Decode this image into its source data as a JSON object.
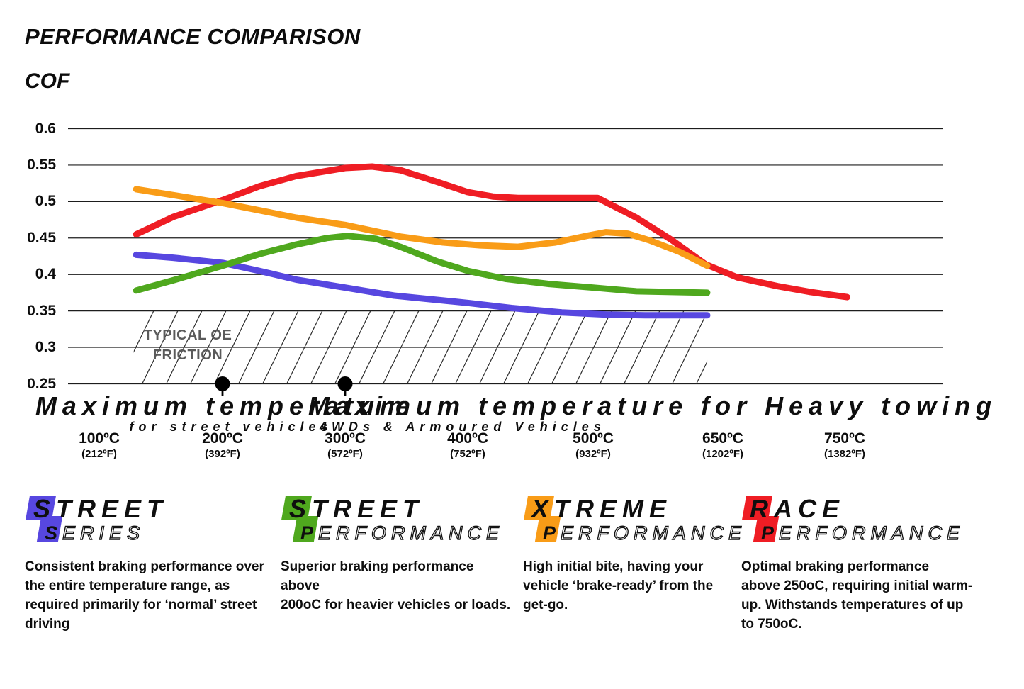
{
  "header": {
    "title": "PERFORMANCE COMPARISON",
    "axis_title": "COF"
  },
  "chart_data": {
    "type": "line",
    "title": "PERFORMANCE COMPARISON",
    "ylabel": "COF",
    "ylim": [
      0.25,
      0.6
    ],
    "grid": true,
    "y_ticks": [
      0.6,
      0.55,
      0.5,
      0.45,
      0.4,
      0.35,
      0.3,
      0.25
    ],
    "y_tick_labels": [
      "0.6",
      "0.55",
      "0.5",
      "0.45",
      "0.4",
      "0.35",
      "0.3",
      "0.25"
    ],
    "x_ticks": [
      {
        "temp_c": 100,
        "label_c": "100ºC",
        "label_f": "(212ºF)"
      },
      {
        "temp_c": 200,
        "label_c": "200ºC",
        "label_f": "(392ºF)"
      },
      {
        "temp_c": 300,
        "label_c": "300ºC",
        "label_f": "(572ºF)"
      },
      {
        "temp_c": 400,
        "label_c": "400ºC",
        "label_f": "(752ºF)"
      },
      {
        "temp_c": 500,
        "label_c": "500ºC",
        "label_f": "(932ºF)"
      },
      {
        "temp_c": 650,
        "label_c": "650ºC",
        "label_f": "(1202ºF)"
      },
      {
        "temp_c": 750,
        "label_c": "750ºC",
        "label_f": "(1382ºF)"
      }
    ],
    "series": [
      {
        "name": "Street Series",
        "color": "#5747e0",
        "points": [
          [
            130,
            0.427
          ],
          [
            160,
            0.423
          ],
          [
            200,
            0.416
          ],
          [
            230,
            0.405
          ],
          [
            260,
            0.393
          ],
          [
            300,
            0.382
          ],
          [
            340,
            0.371
          ],
          [
            400,
            0.361
          ],
          [
            435,
            0.354
          ],
          [
            475,
            0.348
          ],
          [
            515,
            0.345
          ],
          [
            560,
            0.344
          ],
          [
            632,
            0.344
          ]
        ]
      },
      {
        "name": "Street Performance",
        "color": "#4fa81e",
        "points": [
          [
            130,
            0.378
          ],
          [
            160,
            0.392
          ],
          [
            200,
            0.412
          ],
          [
            230,
            0.428
          ],
          [
            260,
            0.441
          ],
          [
            285,
            0.45
          ],
          [
            302,
            0.453
          ],
          [
            325,
            0.449
          ],
          [
            345,
            0.438
          ],
          [
            375,
            0.418
          ],
          [
            400,
            0.405
          ],
          [
            430,
            0.394
          ],
          [
            465,
            0.387
          ],
          [
            500,
            0.382
          ],
          [
            550,
            0.377
          ],
          [
            632,
            0.375
          ]
        ]
      },
      {
        "name": "Race Performance",
        "color": "#ef1d24",
        "points": [
          [
            130,
            0.455
          ],
          [
            160,
            0.479
          ],
          [
            200,
            0.502
          ],
          [
            230,
            0.521
          ],
          [
            260,
            0.535
          ],
          [
            300,
            0.546
          ],
          [
            322,
            0.548
          ],
          [
            345,
            0.543
          ],
          [
            375,
            0.527
          ],
          [
            400,
            0.513
          ],
          [
            420,
            0.507
          ],
          [
            440,
            0.505
          ],
          [
            505,
            0.505
          ],
          [
            550,
            0.478
          ],
          [
            590,
            0.448
          ],
          [
            630,
            0.414
          ],
          [
            662,
            0.396
          ],
          [
            695,
            0.384
          ],
          [
            722,
            0.376
          ],
          [
            752,
            0.369
          ]
        ]
      },
      {
        "name": "Xtreme Performance",
        "color": "#f99c17",
        "points": [
          [
            130,
            0.517
          ],
          [
            200,
            0.498
          ],
          [
            260,
            0.478
          ],
          [
            300,
            0.468
          ],
          [
            345,
            0.452
          ],
          [
            380,
            0.444
          ],
          [
            410,
            0.44
          ],
          [
            440,
            0.438
          ],
          [
            470,
            0.444
          ],
          [
            495,
            0.453
          ],
          [
            515,
            0.458
          ],
          [
            540,
            0.456
          ],
          [
            565,
            0.447
          ],
          [
            600,
            0.431
          ],
          [
            632,
            0.412
          ]
        ]
      }
    ],
    "band": {
      "label_line1": "TYPICAL OE",
      "label_line2": "FRICTION",
      "cof_from": 0.25,
      "cof_to": 0.35,
      "temp_from": 128,
      "temp_to": 632
    },
    "markers": [
      {
        "temp_c": 200,
        "cof": 0.25,
        "line1": "Maximum temperature",
        "line2": "for street vehicles"
      },
      {
        "temp_c": 300,
        "cof": 0.25,
        "line1": "Maximum temperature for Heavy towing",
        "line2": "4WDs & Armoured Vehicles"
      }
    ]
  },
  "legend": [
    {
      "line1": "STREET",
      "line2_first": "S",
      "line2_rest": "ERIES",
      "color": "#5747e0",
      "description": "Consistent braking performance over\nthe entire temperature range, as\nrequired primarily for ‘normal’ street\ndriving"
    },
    {
      "line1": "STREET",
      "line2_first": "P",
      "line2_rest": "ERFORMANCE",
      "color": "#4fa81e",
      "description": "Superior braking performance above\n200oC for heavier vehicles or loads."
    },
    {
      "line1": "XTREME",
      "line2_first": "P",
      "line2_rest": "ERFORMANCE",
      "color": "#f99c17",
      "description": "High initial bite, having your\nvehicle ‘brake-ready’ from the\nget-go."
    },
    {
      "line1": "RACE",
      "line2_first": "P",
      "line2_rest": "ERFORMANCE",
      "color": "#ef1d24",
      "description": "Optimal braking performance\nabove 250oC, requiring initial warm-\nup. Withstands temperatures of up\nto 750oC."
    }
  ]
}
